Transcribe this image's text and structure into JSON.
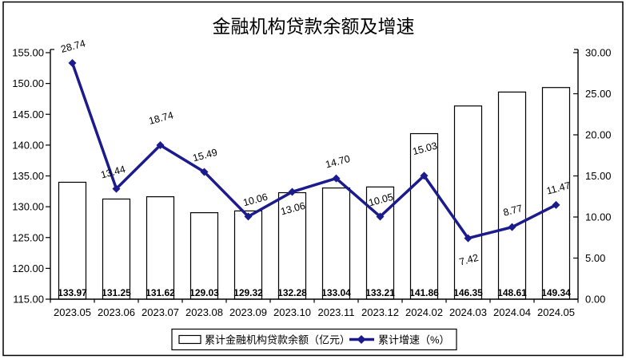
{
  "title": "金融机构贷款余额及增速",
  "legend": {
    "bar_label": "累计金融机构贷款余额（亿元）",
    "line_label": "累计增速（%）"
  },
  "colors": {
    "line": "#1b1b8e",
    "bar_fill": "#ffffff",
    "bar_border": "#000000",
    "axis": "#000000",
    "text": "#000000",
    "background": "#ffffff"
  },
  "chart_data": {
    "type": "combo_bar_line",
    "title": "金融机构贷款余额及增速",
    "categories": [
      "2023.05",
      "2023.06",
      "2023.07",
      "2023.08",
      "2023.09",
      "2023.10",
      "2023.11",
      "2023.12",
      "2024.02",
      "2024.03",
      "2024.04",
      "2024.05"
    ],
    "series": [
      {
        "name": "累计金融机构贷款余额（亿元）",
        "type": "bar",
        "axis": "left",
        "values": [
          133.97,
          131.25,
          131.62,
          129.03,
          129.32,
          132.28,
          133.04,
          133.21,
          141.86,
          146.35,
          148.61,
          149.34
        ]
      },
      {
        "name": "累计增速（%）",
        "type": "line",
        "axis": "right",
        "values": [
          28.74,
          13.44,
          18.74,
          15.49,
          10.06,
          13.06,
          14.7,
          10.05,
          15.03,
          7.42,
          8.77,
          11.47
        ]
      }
    ],
    "left_axis": {
      "min": 115,
      "max": 155,
      "step": 5,
      "tick_labels": [
        "115.00",
        "120.00",
        "125.00",
        "130.00",
        "135.00",
        "140.00",
        "145.00",
        "150.00",
        "155.00"
      ]
    },
    "right_axis": {
      "min": 0,
      "max": 30,
      "step": 5,
      "tick_labels": [
        "0.00",
        "5.00",
        "10.00",
        "15.00",
        "20.00",
        "25.00",
        "30.00"
      ]
    },
    "grid": false,
    "legend_position": "bottom",
    "bar_labels_shown": true,
    "line_labels_shown": true,
    "line_label_side": [
      "above",
      "above",
      "above_far",
      "above",
      "above",
      "below",
      "above",
      "above",
      "above_far",
      "below_far",
      "above",
      "above"
    ]
  }
}
